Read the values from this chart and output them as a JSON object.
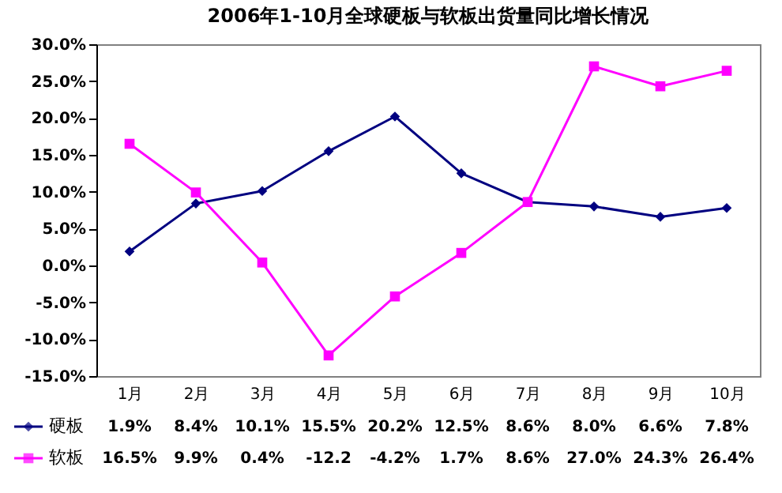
{
  "chart_data": {
    "type": "line",
    "title": "2006年1-10月全球硬板与软板出货量同比增长情况",
    "categories": [
      "1月",
      "2月",
      "3月",
      "4月",
      "5月",
      "6月",
      "7月",
      "8月",
      "9月",
      "10月"
    ],
    "series": [
      {
        "name": "硬板",
        "color": "#000080",
        "marker": "diamond",
        "values": [
          1.9,
          8.4,
          10.1,
          15.5,
          20.2,
          12.5,
          8.6,
          8.0,
          6.6,
          7.8
        ],
        "value_labels": [
          "1.9%",
          "8.4%",
          "10.1%",
          "15.5%",
          "20.2%",
          "12.5%",
          "8.6%",
          "8.0%",
          "6.6%",
          "7.8%"
        ]
      },
      {
        "name": "软板",
        "color": "#ff00ff",
        "marker": "square",
        "values": [
          16.5,
          9.9,
          0.4,
          -12.2,
          -4.2,
          1.7,
          8.6,
          27.0,
          24.3,
          26.4
        ],
        "value_labels": [
          "16.5%",
          "9.9%",
          "0.4%",
          "-12.2",
          "-4.2%",
          "1.7%",
          "8.6%",
          "27.0%",
          "24.3%",
          "26.4%"
        ]
      }
    ],
    "ylim": [
      -15,
      30
    ],
    "yticks": [
      {
        "value": -15,
        "label": "-15.0%"
      },
      {
        "value": -10,
        "label": "-10.0%"
      },
      {
        "value": -5,
        "label": "-5.0%"
      },
      {
        "value": 0,
        "label": "0.0%"
      },
      {
        "value": 5,
        "label": "5.0%"
      },
      {
        "value": 10,
        "label": "10.0%"
      },
      {
        "value": 15,
        "label": "15.0%"
      },
      {
        "value": 20,
        "label": "20.0%"
      },
      {
        "value": 25,
        "label": "25.0%"
      },
      {
        "value": 30,
        "label": "30.0%"
      }
    ],
    "legend": "bottom"
  }
}
